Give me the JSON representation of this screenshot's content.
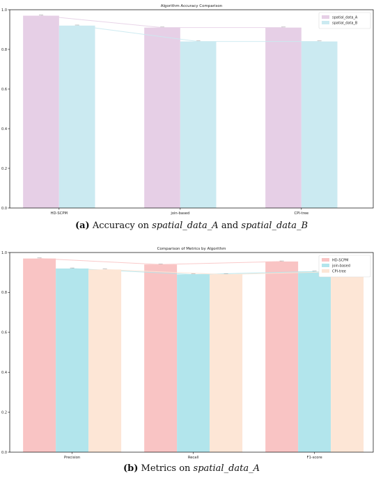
{
  "chart_data": [
    {
      "type": "bar",
      "title": "Algorithm Accuracy Comparison",
      "categories": [
        "HD-SCPM",
        "join-based",
        "CPI-tree"
      ],
      "series": [
        {
          "name": "spatial_data_A",
          "values": [
            0.97,
            0.91,
            0.91
          ],
          "color": "#e6cfe6"
        },
        {
          "name": "spatial_data_B",
          "values": [
            0.92,
            0.84,
            0.84
          ],
          "color": "#cbeaf1"
        }
      ],
      "yticks": [
        "0.0",
        "0.2",
        "0.4",
        "0.6",
        "0.8",
        "1.0"
      ],
      "ylim": [
        0,
        1.0
      ],
      "legend": "top-right",
      "grid": false
    },
    {
      "type": "bar",
      "title": "Comparison of Metrics by Algorithm",
      "categories": [
        "Precision",
        "Recall",
        "F1-score"
      ],
      "series": [
        {
          "name": "HD-SCPM",
          "values": [
            0.97,
            0.94,
            0.955
          ],
          "color": "#f9c4c4"
        },
        {
          "name": "join-based",
          "values": [
            0.92,
            0.89,
            0.905
          ],
          "color": "#b2e5ec"
        },
        {
          "name": "CPI-tree",
          "values": [
            0.915,
            0.89,
            0.905
          ],
          "color": "#fde6d6"
        }
      ],
      "yticks": [
        "0.0",
        "0.2",
        "0.4",
        "0.6",
        "0.8",
        "1.0"
      ],
      "ylim": [
        0,
        1.0
      ],
      "legend": "top-right",
      "grid": false
    }
  ],
  "captions": {
    "a": {
      "tag": "(a)",
      "pre": "Accuracy on",
      "it1": "spatial_data_A",
      "mid": "and",
      "it2": "spatial_data_B"
    },
    "b": {
      "tag": "(b)",
      "pre": "Metrics on",
      "it1": "spatial_data_A"
    }
  }
}
